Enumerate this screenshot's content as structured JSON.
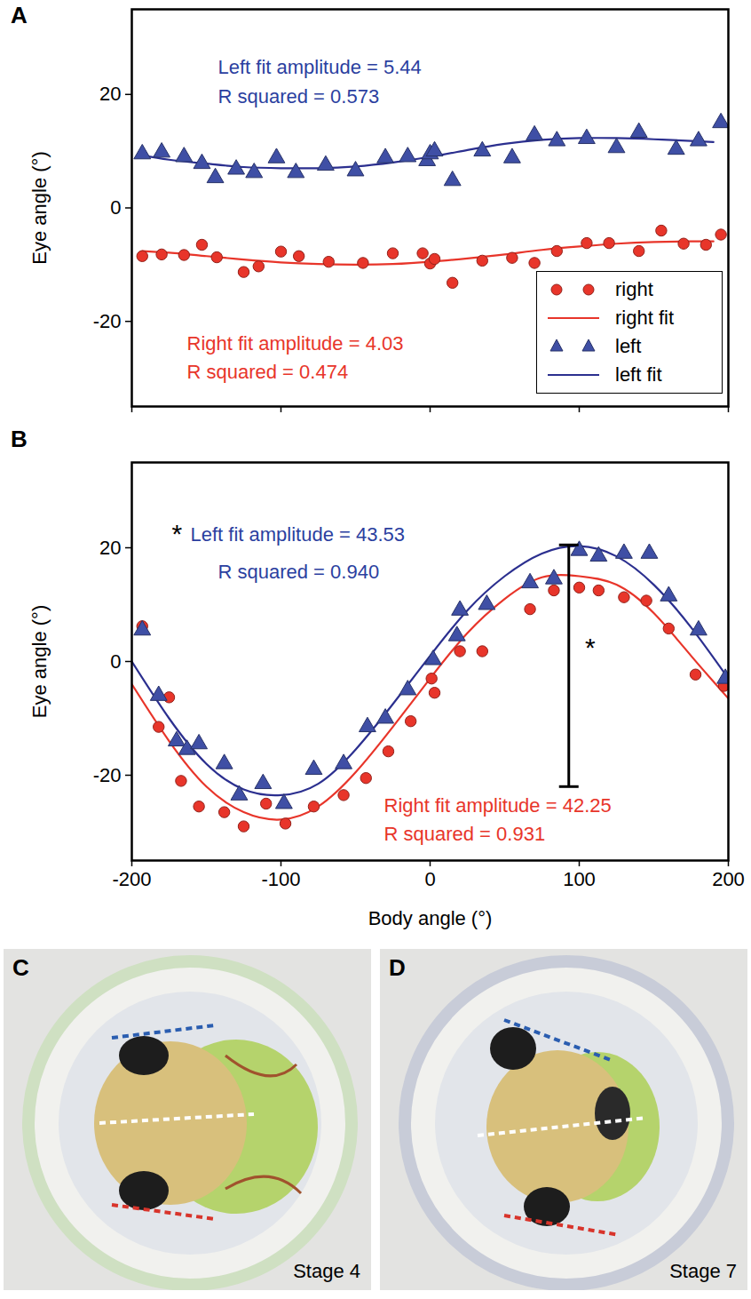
{
  "chart_data": [
    {
      "panel": "A",
      "type": "scatter",
      "ylabel": "Eye angle (°)",
      "xlim": [
        -200,
        200
      ],
      "xticks": [
        -200,
        -100,
        0,
        100,
        200
      ],
      "ylim": [
        -35,
        35
      ],
      "yticks": [
        -20,
        0,
        20
      ],
      "tick_labels": "y",
      "legend": "lower right",
      "series": [
        {
          "name": "right",
          "type": "scatter",
          "marker": "circle",
          "color": "#e8352a",
          "x": [
            -193,
            -180,
            -165,
            -153,
            -143,
            -125,
            -115,
            -100,
            -88,
            -68,
            -45,
            -25,
            -5,
            0,
            3,
            15,
            35,
            55,
            70,
            85,
            105,
            120,
            140,
            155,
            170,
            185,
            195
          ],
          "values": [
            -8.5,
            -8.2,
            -8.3,
            -6.5,
            -8.7,
            -11.3,
            -10.3,
            -7.7,
            -8.5,
            -9.5,
            -9.7,
            -8,
            -8,
            -9.8,
            -9,
            -13.2,
            -9.3,
            -8.8,
            -9.7,
            -7.6,
            -6.2,
            -6.2,
            -7.6,
            -4,
            -6.3,
            -6.5,
            -4.7
          ]
        },
        {
          "name": "right fit",
          "type": "line",
          "line_style": "solid",
          "color": "#e8352a",
          "x": [
            -193,
            -175,
            -150,
            -125,
            -100,
            -75,
            -50,
            -25,
            0,
            25,
            50,
            75,
            100,
            125,
            150,
            175,
            190
          ],
          "values": [
            -7.6,
            -7.9,
            -8.5,
            -9.1,
            -9.6,
            -9.9,
            -10,
            -9.9,
            -9.5,
            -8.9,
            -8.2,
            -7.4,
            -6.8,
            -6.3,
            -6,
            -5.9,
            -5.9
          ]
        },
        {
          "name": "left",
          "type": "scatter",
          "marker": "triangle",
          "color": "#3f4fa5",
          "x": [
            -193,
            -180,
            -165,
            -153,
            -144,
            -130,
            -118,
            -103,
            -90,
            -70,
            -50,
            -30,
            -15,
            -2,
            0,
            3,
            15,
            35,
            55,
            70,
            85,
            105,
            125,
            140,
            165,
            180,
            195
          ],
          "values": [
            9.5,
            9.8,
            9,
            7.8,
            5.3,
            6.8,
            6.2,
            8.8,
            6.2,
            7.5,
            6.5,
            8.8,
            9,
            8.3,
            9.5,
            10,
            4.8,
            10,
            8.8,
            12.8,
            11.8,
            12.2,
            10.6,
            13.3,
            10.3,
            11.8,
            15
          ]
        },
        {
          "name": "left fit",
          "type": "line",
          "line_style": "solid",
          "color": "#2b2f8f",
          "x": [
            -193,
            -175,
            -150,
            -125,
            -100,
            -75,
            -50,
            -25,
            0,
            25,
            50,
            75,
            100,
            125,
            150,
            175,
            190
          ],
          "values": [
            9.3,
            8.5,
            7.8,
            7.2,
            7,
            7,
            7.3,
            8,
            9,
            10.2,
            11.3,
            12,
            12.3,
            12.3,
            12.1,
            11.8,
            11.6
          ]
        }
      ],
      "annotations": [
        {
          "text": "Left fit amplitude = 5.44",
          "color": "#2b3fa0"
        },
        {
          "text": "R squared = 0.573",
          "color": "#2b3fa0"
        },
        {
          "text": "Right fit amplitude = 4.03",
          "color": "#e8352a"
        },
        {
          "text": "R squared = 0.474",
          "color": "#e8352a"
        }
      ]
    },
    {
      "panel": "B",
      "type": "scatter",
      "xlabel": "Body angle (°)",
      "ylabel": "Eye angle (°)",
      "xlim": [
        -200,
        200
      ],
      "xticks": [
        -200,
        -100,
        0,
        100,
        200
      ],
      "ylim": [
        -35,
        35
      ],
      "yticks": [
        -20,
        0,
        20
      ],
      "series": [
        {
          "name": "right",
          "type": "scatter",
          "marker": "circle",
          "color": "#e8352a",
          "x": [
            -193,
            -182,
            -175,
            -167,
            -155,
            -138,
            -125,
            -110,
            -97,
            -78,
            -58,
            -43,
            -28,
            -13,
            1,
            3,
            20,
            35,
            67,
            83,
            100,
            113,
            130,
            145,
            160,
            178,
            197
          ],
          "values": [
            6.2,
            -11.5,
            -6.3,
            -21,
            -25.5,
            -26.5,
            -29,
            -25,
            -28.5,
            -25.5,
            -23.5,
            -20.5,
            -15.8,
            -10.5,
            -3,
            -5.5,
            1.8,
            1.8,
            9.2,
            12.5,
            13,
            12.5,
            11.3,
            10.7,
            5.8,
            -2.3,
            -4.3
          ]
        },
        {
          "name": "right fit",
          "type": "line",
          "line_style": "solid",
          "color": "#e8352a",
          "x": [
            -200,
            -175,
            -150,
            -125,
            -100,
            -75,
            -50,
            -25,
            0,
            25,
            50,
            75,
            100,
            125,
            150,
            175,
            200
          ],
          "values": [
            -4,
            -14,
            -22,
            -26.5,
            -27.8,
            -25.5,
            -19.5,
            -11.5,
            -3,
            5,
            11,
            14.8,
            15,
            13.5,
            8.5,
            1,
            -6.5
          ]
        },
        {
          "name": "left",
          "type": "scatter",
          "marker": "triangle",
          "color": "#3f4fa5",
          "x": [
            -193,
            -182,
            -170,
            -163,
            -155,
            -138,
            -128,
            -112,
            -98,
            -78,
            -58,
            -42,
            -30,
            -15,
            2,
            18,
            20,
            38,
            67,
            83,
            100,
            113,
            130,
            147,
            160,
            180,
            198
          ],
          "values": [
            5.5,
            -6,
            -14,
            -15.5,
            -14.5,
            -18,
            -23.5,
            -21.5,
            -25,
            -19,
            -18,
            -11.5,
            -10,
            -5,
            0.3,
            4.5,
            9,
            10,
            13.8,
            14.5,
            19.5,
            18.5,
            19,
            19,
            11.5,
            5.5,
            -3
          ]
        },
        {
          "name": "left fit",
          "type": "line",
          "line_style": "solid",
          "color": "#2b2f8f",
          "x": [
            -200,
            -175,
            -150,
            -125,
            -100,
            -75,
            -50,
            -25,
            0,
            25,
            50,
            75,
            100,
            125,
            150,
            175,
            200
          ],
          "values": [
            0,
            -10,
            -18,
            -22.5,
            -23.5,
            -21.5,
            -15.5,
            -7.5,
            1,
            9,
            15,
            19,
            20.3,
            18.5,
            13.5,
            6,
            -3
          ]
        }
      ],
      "annotations": [
        {
          "text": "*",
          "color": "#000000"
        },
        {
          "text": "Left fit amplitude = 43.53",
          "color": "#2b3fa0"
        },
        {
          "text": "R squared = 0.940",
          "color": "#2b3fa0"
        },
        {
          "text": "Right fit amplitude = 42.25",
          "color": "#e8352a"
        },
        {
          "text": "R squared = 0.931",
          "color": "#e8352a"
        }
      ],
      "bracket": {
        "x": 93,
        "y1": -22,
        "y2": 20.5,
        "label": "*"
      }
    }
  ],
  "images": [
    {
      "panel": "C",
      "caption": "Stage 4"
    },
    {
      "panel": "D",
      "caption": "Stage 7"
    }
  ]
}
